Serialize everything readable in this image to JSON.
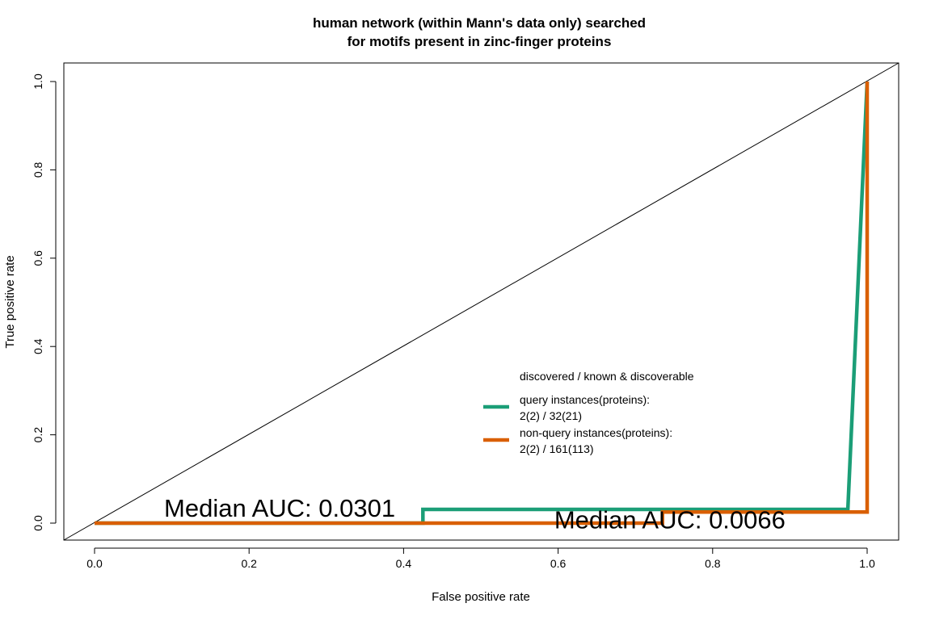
{
  "chart_data": {
    "type": "line",
    "title": [
      "human network (within Mann's data only) searched",
      "for motifs present in zinc-finger proteins"
    ],
    "xlabel": "False positive rate",
    "ylabel": "True positive rate",
    "xlim": [
      0.0,
      1.0
    ],
    "ylim": [
      0.0,
      1.0
    ],
    "xticks": [
      "0.0",
      "0.2",
      "0.4",
      "0.6",
      "0.8",
      "1.0"
    ],
    "yticks": [
      "0.0",
      "0.2",
      "0.4",
      "0.6",
      "0.8",
      "1.0"
    ],
    "grid": false,
    "diagonal_reference": true,
    "legend": {
      "title": "discovered / known & discoverable",
      "placement": "center-right",
      "entries": [
        {
          "line1": "query instances(proteins):",
          "line2": "2(2) / 32(21)"
        },
        {
          "line1": "non-query instances(proteins):",
          "line2": "2(2) / 161(113)"
        }
      ]
    },
    "series": [
      {
        "name": "query instances(proteins):",
        "color": "#1b9e77",
        "x": [
          0.0,
          0.425,
          0.425,
          0.975,
          1.0
        ],
        "y": [
          0.0,
          0.0,
          0.031,
          0.031,
          1.0
        ]
      },
      {
        "name": "non-query instances(proteins):",
        "color": "#d95f02",
        "x": [
          0.0,
          0.735,
          0.735,
          1.0,
          1.0
        ],
        "y": [
          0.0,
          0.0,
          0.025,
          0.025,
          1.0
        ]
      }
    ],
    "annotations": [
      {
        "text": "Median AUC: 0.0301",
        "x": 0.09,
        "y": 0.015
      },
      {
        "text": "Median AUC: 0.0066",
        "x": 0.595,
        "y": -0.012
      }
    ]
  }
}
